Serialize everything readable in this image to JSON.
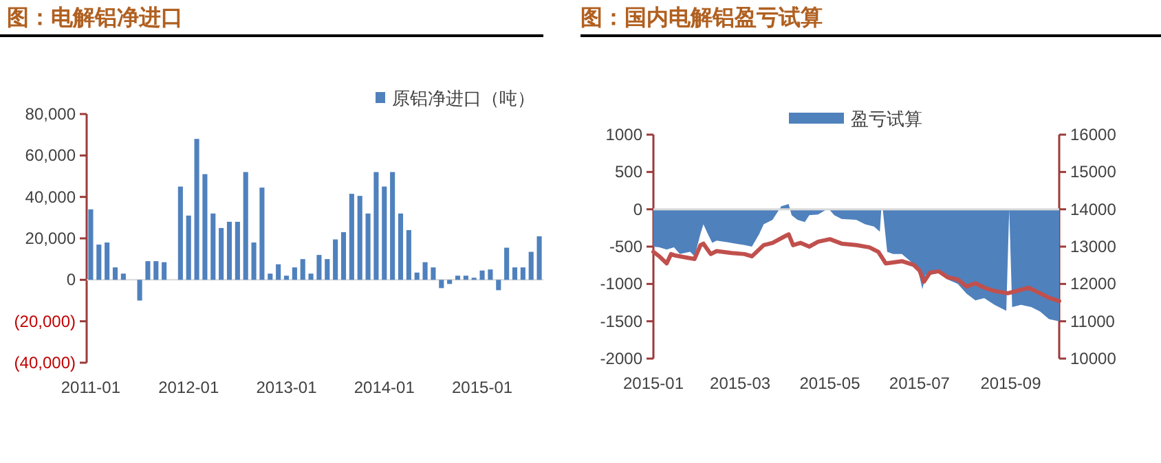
{
  "chart_data": [
    {
      "type": "bar",
      "title": "图：电解铝净进口",
      "legend": "top right",
      "categories": [
        "2011-01",
        null,
        null,
        null,
        null,
        null,
        null,
        null,
        null,
        null,
        null,
        null,
        "2012-01",
        null,
        null,
        null,
        null,
        null,
        null,
        null,
        null,
        null,
        null,
        null,
        "2013-01",
        null,
        null,
        null,
        null,
        null,
        null,
        null,
        null,
        null,
        null,
        null,
        "2014-01",
        null,
        null,
        null,
        null,
        null,
        null,
        null,
        null,
        null,
        null,
        null,
        "2015-01",
        null,
        null,
        null,
        null,
        null,
        null,
        null
      ],
      "series": [
        {
          "name": "原铝净进口（吨）",
          "color": "#4f81bd",
          "values": [
            34000,
            17000,
            18000,
            6000,
            3000,
            0,
            -10000,
            9000,
            9000,
            8500,
            0,
            45000,
            31000,
            68000,
            51000,
            32000,
            25000,
            28000,
            28000,
            52000,
            18000,
            44500,
            3000,
            7500,
            2000,
            6000,
            10000,
            3000,
            12000,
            10000,
            19500,
            23000,
            41500,
            40500,
            32000,
            52000,
            45000,
            52000,
            32000,
            24000,
            3500,
            8500,
            6000,
            -4000,
            -2000,
            2000,
            2000,
            1000,
            4500,
            5000,
            -5000,
            15500,
            6000,
            6000,
            13500,
            21000
          ]
        }
      ],
      "ylim": [
        -40000,
        80000
      ],
      "yticks": [
        {
          "value": -40000,
          "label": "(40,000)"
        },
        {
          "value": -20000,
          "label": "(20,000)"
        },
        {
          "value": 0,
          "label": "0"
        },
        {
          "value": 20000,
          "label": "20,000"
        },
        {
          "value": 40000,
          "label": "40,000"
        },
        {
          "value": 60000,
          "label": "60,000"
        },
        {
          "value": 80000,
          "label": "80,000"
        }
      ]
    },
    {
      "type": "area",
      "title": "图：国内电解铝盈亏试算",
      "legend": "top",
      "xlim": [
        "2015-01-01",
        "2015-10-04"
      ],
      "xticks": [
        {
          "value": "2015-01-01",
          "label": "2015-01"
        },
        {
          "value": "2015-03-01",
          "label": "2015-03"
        },
        {
          "value": "2015-05-01",
          "label": "2015-05"
        },
        {
          "value": "2015-07-01",
          "label": "2015-07"
        },
        {
          "value": "2015-09-01",
          "label": "2015-09"
        }
      ],
      "ylim": [
        -2000,
        1000
      ],
      "yticks": [
        -2000,
        -1500,
        -1000,
        -500,
        0,
        500,
        1000
      ],
      "y2lim": [
        10000,
        16000
      ],
      "y2ticks": [
        10000,
        11000,
        12000,
        13000,
        14000,
        15000,
        16000
      ],
      "series": [
        {
          "name": "盈亏试算",
          "type": "area",
          "color": "#4f81bd",
          "x": [
            "2015-01-01",
            "2015-01-05",
            "2015-01-10",
            "2015-01-15",
            "2015-01-19",
            "2015-01-26",
            "2015-01-29",
            "2015-02-02",
            "2015-02-04",
            "2015-02-07",
            "2015-02-10",
            "2015-02-13",
            "2015-02-20",
            "2015-02-26",
            "2015-03-04",
            "2015-03-09",
            "2015-03-14",
            "2015-03-17",
            "2015-03-23",
            "2015-03-29",
            "2015-04-03",
            "2015-04-05",
            "2015-04-09",
            "2015-04-14",
            "2015-04-17",
            "2015-04-23",
            "2015-04-30",
            "2015-05-04",
            "2015-05-09",
            "2015-05-19",
            "2015-05-25",
            "2015-05-31",
            "2015-06-04",
            "2015-06-05",
            "2015-06-06",
            "2015-06-09",
            "2015-06-13",
            "2015-06-19",
            "2015-06-25",
            "2015-06-30",
            "2015-07-03",
            "2015-07-05",
            "2015-07-08",
            "2015-07-14",
            "2015-07-20",
            "2015-07-27",
            "2015-08-02",
            "2015-08-08",
            "2015-08-14",
            "2015-08-21",
            "2015-08-27",
            "2015-08-29",
            "2015-08-31",
            "2015-09-02",
            "2015-09-08",
            "2015-09-15",
            "2015-09-18",
            "2015-09-21",
            "2015-09-27",
            "2015-10-04"
          ],
          "values": [
            -500,
            -510,
            -540,
            -510,
            -600,
            -570,
            -630,
            -330,
            -200,
            -330,
            -450,
            -420,
            -440,
            -460,
            -480,
            -500,
            -330,
            -200,
            -140,
            40,
            70,
            -80,
            -140,
            -170,
            -80,
            -70,
            10,
            -80,
            -130,
            -140,
            -200,
            -230,
            -300,
            0,
            0,
            -570,
            -600,
            -600,
            -700,
            -820,
            -1070,
            -880,
            -880,
            -850,
            -940,
            -1000,
            -1130,
            -1220,
            -1190,
            -1280,
            -1340,
            -1360,
            0,
            -1310,
            -1280,
            -1310,
            -1340,
            -1370,
            -1470,
            -1500
          ]
        },
        {
          "type": "line",
          "axis": "y2",
          "color": "#c0504d",
          "x": [
            "2015-01-01",
            "2015-01-05",
            "2015-01-10",
            "2015-01-13",
            "2015-01-16",
            "2015-01-23",
            "2015-01-29",
            "2015-02-02",
            "2015-02-04",
            "2015-02-09",
            "2015-02-13",
            "2015-02-23",
            "2015-03-04",
            "2015-03-09",
            "2015-03-17",
            "2015-03-23",
            "2015-04-01",
            "2015-04-03",
            "2015-04-06",
            "2015-04-11",
            "2015-04-17",
            "2015-04-23",
            "2015-05-01",
            "2015-05-09",
            "2015-05-19",
            "2015-05-28",
            "2015-06-03",
            "2015-06-08",
            "2015-06-19",
            "2015-06-27",
            "2015-07-01",
            "2015-07-04",
            "2015-07-08",
            "2015-07-14",
            "2015-07-20",
            "2015-07-27",
            "2015-08-02",
            "2015-08-08",
            "2015-08-14",
            "2015-08-21",
            "2015-08-30",
            "2015-09-05",
            "2015-09-13",
            "2015-09-21",
            "2015-09-27",
            "2015-10-04"
          ],
          "values": [
            12860,
            12740,
            12550,
            12800,
            12760,
            12710,
            12670,
            13040,
            13080,
            12800,
            12880,
            12830,
            12800,
            12740,
            13040,
            13100,
            13290,
            13330,
            13040,
            13100,
            13000,
            13130,
            13200,
            13080,
            13040,
            12980,
            12860,
            12550,
            12610,
            12510,
            12360,
            12060,
            12300,
            12340,
            12180,
            12120,
            11930,
            12020,
            11900,
            11810,
            11750,
            11810,
            11900,
            11750,
            11630,
            11540
          ]
        }
      ]
    }
  ]
}
